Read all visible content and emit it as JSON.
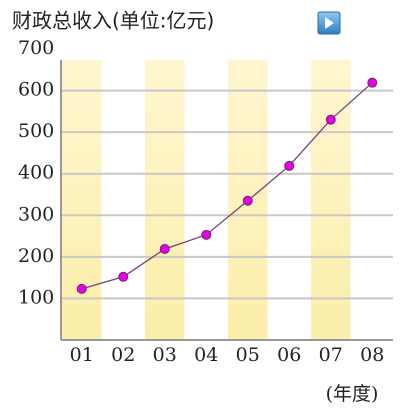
{
  "chart_data": {
    "type": "line",
    "title": "财政总收入(单位:亿元)",
    "x_label": "(年度)",
    "categories": [
      "01",
      "02",
      "03",
      "04",
      "05",
      "06",
      "07",
      "08"
    ],
    "values": [
      123,
      152,
      219,
      253,
      335,
      419,
      530,
      619
    ],
    "color": "#7b3f7b",
    "marker_color": "#e600e6",
    "ylim": [
      0,
      700
    ],
    "yticks": [
      100,
      200,
      300,
      400,
      500,
      600,
      700
    ],
    "grid": true
  }
}
